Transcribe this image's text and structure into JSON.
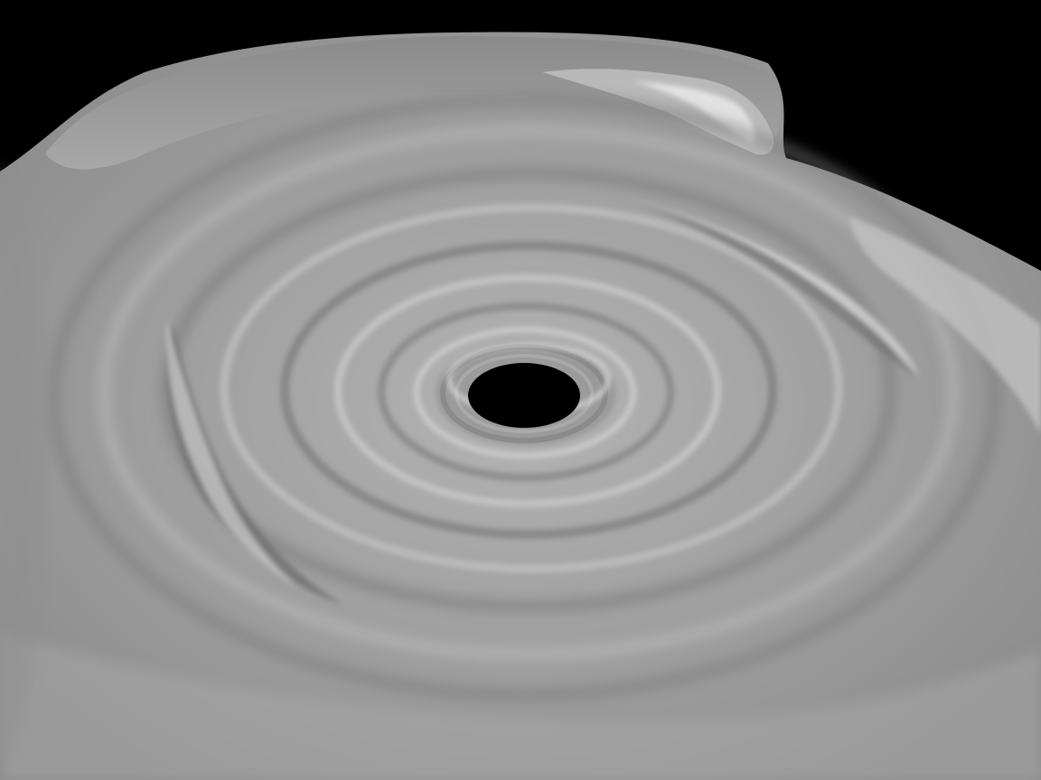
{
  "scene": {
    "subject": "disk-surface-render",
    "colors": {
      "background": "#000000",
      "surface_base": "#9a9a9a",
      "surface_light": "#cfcfcf",
      "surface_highlight": "#f2f2f2",
      "surface_shadow": "#5e5e5e",
      "central_hole": "#000000"
    }
  }
}
